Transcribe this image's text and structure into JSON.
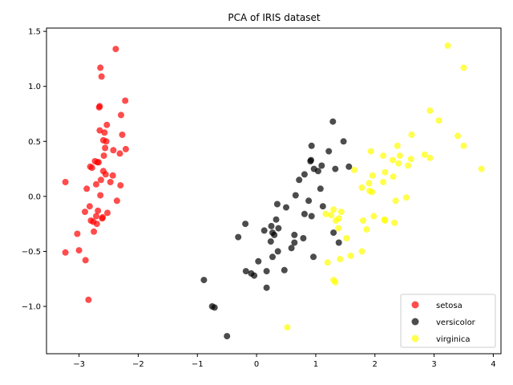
{
  "chart_data": {
    "type": "scatter",
    "title": "PCA of IRIS dataset",
    "xlabel": "",
    "ylabel": "",
    "xlim": [
      -3.55,
      4.13
    ],
    "ylim": [
      -1.43,
      1.53
    ],
    "xticks": [
      -3,
      -2,
      -1,
      0,
      1,
      2,
      3,
      4
    ],
    "xtick_labels": [
      "−3",
      "−2",
      "−1",
      "0",
      "1",
      "2",
      "3",
      "4"
    ],
    "yticks": [
      -1.0,
      -0.5,
      0.0,
      0.5,
      1.0,
      1.5
    ],
    "ytick_labels": [
      "−1.0",
      "−0.5",
      "0.0",
      "0.5",
      "1.0",
      "1.5"
    ],
    "grid": false,
    "legend_position": "bottom-right",
    "series": [
      {
        "name": "setosa",
        "color": "#ff0000",
        "points": [
          [
            -3.23,
            0.13
          ],
          [
            -3.23,
            -0.51
          ],
          [
            -3.03,
            -0.34
          ],
          [
            -3.0,
            -0.49
          ],
          [
            -2.9,
            -0.14
          ],
          [
            -2.89,
            -0.58
          ],
          [
            -2.87,
            0.07
          ],
          [
            -2.84,
            -0.94
          ],
          [
            -2.82,
            -0.09
          ],
          [
            -2.81,
            0.27
          ],
          [
            -2.8,
            -0.22
          ],
          [
            -2.78,
            0.26
          ],
          [
            -2.76,
            -0.23
          ],
          [
            -2.75,
            -0.32
          ],
          [
            -2.73,
            0.32
          ],
          [
            -2.71,
            -0.18
          ],
          [
            -2.71,
            0.11
          ],
          [
            -2.7,
            -0.25
          ],
          [
            -2.69,
            0.31
          ],
          [
            -2.68,
            -0.13
          ],
          [
            -2.67,
            0.31
          ],
          [
            -2.66,
            0.81
          ],
          [
            -2.65,
            0.82
          ],
          [
            -2.65,
            0.6
          ],
          [
            -2.64,
            0.01
          ],
          [
            -2.64,
            1.17
          ],
          [
            -2.63,
            0.15
          ],
          [
            -2.62,
            1.09
          ],
          [
            -2.61,
            -0.2
          ],
          [
            -2.6,
            -0.19
          ],
          [
            -2.59,
            0.23
          ],
          [
            -2.59,
            0.51
          ],
          [
            -2.58,
            0.37
          ],
          [
            -2.57,
            0.58
          ],
          [
            -2.56,
            0.44
          ],
          [
            -2.55,
            0.2
          ],
          [
            -2.54,
            0.5
          ],
          [
            -2.53,
            0.65
          ],
          [
            -2.52,
            -0.15
          ],
          [
            -2.47,
            0.13
          ],
          [
            -2.43,
            0.19
          ],
          [
            -2.42,
            0.42
          ],
          [
            -2.38,
            1.34
          ],
          [
            -2.36,
            -0.04
          ],
          [
            -2.31,
            0.39
          ],
          [
            -2.3,
            0.1
          ],
          [
            -2.29,
            0.74
          ],
          [
            -2.27,
            0.56
          ],
          [
            -2.22,
            0.87
          ],
          [
            -2.21,
            0.43
          ]
        ]
      },
      {
        "name": "versicolor",
        "color": "#000000",
        "points": [
          [
            -0.89,
            -0.76
          ],
          [
            -0.75,
            -1.0
          ],
          [
            -0.71,
            -1.01
          ],
          [
            -0.5,
            -1.27
          ],
          [
            -0.31,
            -0.37
          ],
          [
            -0.19,
            -0.25
          ],
          [
            -0.18,
            -0.68
          ],
          [
            -0.09,
            -0.7
          ],
          [
            -0.04,
            -0.72
          ],
          [
            0.03,
            -0.59
          ],
          [
            0.13,
            -0.31
          ],
          [
            0.17,
            -0.83
          ],
          [
            0.17,
            -0.68
          ],
          [
            0.24,
            -0.41
          ],
          [
            0.25,
            -0.27
          ],
          [
            0.27,
            -0.33
          ],
          [
            0.27,
            -0.55
          ],
          [
            0.3,
            -0.35
          ],
          [
            0.33,
            -0.21
          ],
          [
            0.35,
            -0.07
          ],
          [
            0.36,
            -0.5
          ],
          [
            0.37,
            -0.29
          ],
          [
            0.47,
            -0.67
          ],
          [
            0.5,
            -0.1
          ],
          [
            0.59,
            -0.47
          ],
          [
            0.64,
            -0.35
          ],
          [
            0.64,
            -0.42
          ],
          [
            0.66,
            0.01
          ],
          [
            0.72,
            0.15
          ],
          [
            0.79,
            -0.38
          ],
          [
            0.81,
            -0.16
          ],
          [
            0.81,
            0.2
          ],
          [
            0.88,
            -0.04
          ],
          [
            0.91,
            0.32
          ],
          [
            0.92,
            0.33
          ],
          [
            0.93,
            -0.18
          ],
          [
            0.93,
            0.46
          ],
          [
            0.96,
            -0.55
          ],
          [
            0.97,
            0.25
          ],
          [
            1.04,
            0.23
          ],
          [
            1.08,
            0.07
          ],
          [
            1.1,
            0.28
          ],
          [
            1.12,
            -0.09
          ],
          [
            1.22,
            0.41
          ],
          [
            1.29,
            0.68
          ],
          [
            1.3,
            -0.33
          ],
          [
            1.33,
            0.25
          ],
          [
            1.39,
            -0.42
          ],
          [
            1.47,
            0.5
          ],
          [
            1.56,
            0.27
          ]
        ]
      },
      {
        "name": "virginica",
        "color": "#ffff00",
        "points": [
          [
            0.52,
            -1.19
          ],
          [
            1.17,
            -0.16
          ],
          [
            1.2,
            -0.6
          ],
          [
            1.26,
            -0.17
          ],
          [
            1.3,
            -0.76
          ],
          [
            1.3,
            -0.12
          ],
          [
            1.33,
            -0.78
          ],
          [
            1.34,
            -0.22
          ],
          [
            1.38,
            -0.29
          ],
          [
            1.39,
            -0.2
          ],
          [
            1.41,
            -0.57
          ],
          [
            1.43,
            -0.14
          ],
          [
            1.52,
            -0.38
          ],
          [
            1.59,
            -0.54
          ],
          [
            1.65,
            0.24
          ],
          [
            1.78,
            -0.5
          ],
          [
            1.78,
            0.08
          ],
          [
            1.8,
            -0.22
          ],
          [
            1.9,
            0.12
          ],
          [
            1.91,
            0.05
          ],
          [
            1.93,
            0.41
          ],
          [
            1.95,
            0.04
          ],
          [
            1.96,
            0.19
          ],
          [
            1.98,
            -0.18
          ],
          [
            2.14,
            0.13
          ],
          [
            2.14,
            0.37
          ],
          [
            2.16,
            -0.21
          ],
          [
            2.17,
            -0.22
          ],
          [
            2.17,
            0.22
          ],
          [
            2.3,
            0.33
          ],
          [
            2.31,
            0.18
          ],
          [
            2.33,
            -0.24
          ],
          [
            2.35,
            -0.04
          ],
          [
            2.38,
            0.46
          ],
          [
            2.4,
            0.3
          ],
          [
            2.42,
            0.37
          ],
          [
            2.53,
            -0.01
          ],
          [
            2.56,
            0.28
          ],
          [
            2.61,
            0.34
          ],
          [
            2.62,
            0.56
          ],
          [
            2.84,
            0.38
          ],
          [
            2.93,
            0.35
          ],
          [
            2.93,
            0.78
          ],
          [
            3.08,
            0.69
          ],
          [
            3.23,
            1.37
          ],
          [
            3.4,
            0.55
          ],
          [
            3.5,
            1.17
          ],
          [
            3.5,
            0.46
          ],
          [
            3.8,
            0.25
          ],
          [
            1.86,
            -0.3
          ]
        ]
      }
    ]
  }
}
